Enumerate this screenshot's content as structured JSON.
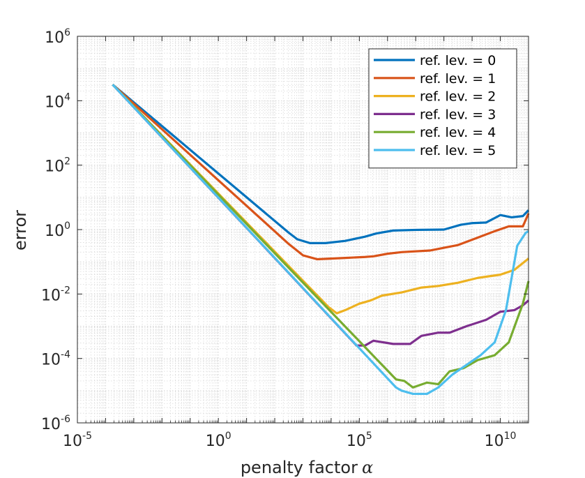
{
  "chart_data": {
    "type": "line",
    "title": "",
    "xlabel": "penalty factor",
    "xlabel_symbol": "α",
    "ylabel": "error",
    "xscale": "log",
    "yscale": "log",
    "xlim": [
      -5,
      11
    ],
    "ylim": [
      -6,
      6
    ],
    "xlim_note": "log10 exponents",
    "x_ticks": [
      {
        "base": "10",
        "exp": "-5",
        "value": -5
      },
      {
        "base": "10",
        "exp": "0",
        "value": 0
      },
      {
        "base": "10",
        "exp": "5",
        "value": 5
      },
      {
        "base": "10",
        "exp": "10",
        "value": 10
      }
    ],
    "y_ticks": [
      {
        "base": "10",
        "exp": "-6",
        "value": -6
      },
      {
        "base": "10",
        "exp": "-4",
        "value": -4
      },
      {
        "base": "10",
        "exp": "-2",
        "value": -2
      },
      {
        "base": "10",
        "exp": "0",
        "value": 0
      },
      {
        "base": "10",
        "exp": "2",
        "value": 2
      },
      {
        "base": "10",
        "exp": "4",
        "value": 4
      },
      {
        "base": "10",
        "exp": "6",
        "value": 6
      }
    ],
    "grid": true,
    "legend_position": "top-right",
    "series": [
      {
        "name": "ref. lev. = 0",
        "color": "#0072BD",
        "points": [
          [
            -3.75,
            4.5
          ],
          [
            2.5,
            -0.1
          ],
          [
            2.8,
            -0.3
          ],
          [
            3.25,
            -0.42
          ],
          [
            3.8,
            -0.42
          ],
          [
            4.5,
            -0.35
          ],
          [
            5.2,
            -0.22
          ],
          [
            5.6,
            -0.12
          ],
          [
            6.2,
            -0.03
          ],
          [
            7.0,
            -0.01
          ],
          [
            8.0,
            0.0
          ],
          [
            8.6,
            0.15
          ],
          [
            9.0,
            0.2
          ],
          [
            9.5,
            0.22
          ],
          [
            10.0,
            0.45
          ],
          [
            10.4,
            0.38
          ],
          [
            10.8,
            0.42
          ],
          [
            11.0,
            0.6
          ]
        ]
      },
      {
        "name": "ref. lev. = 1",
        "color": "#D95319",
        "points": [
          [
            -3.75,
            4.5
          ],
          [
            2.5,
            -0.45
          ],
          [
            3.0,
            -0.8
          ],
          [
            3.5,
            -0.92
          ],
          [
            4.5,
            -0.88
          ],
          [
            5.2,
            -0.85
          ],
          [
            5.5,
            -0.83
          ],
          [
            6.0,
            -0.75
          ],
          [
            6.5,
            -0.7
          ],
          [
            7.5,
            -0.65
          ],
          [
            8.5,
            -0.48
          ],
          [
            9.2,
            -0.25
          ],
          [
            9.8,
            -0.05
          ],
          [
            10.3,
            0.1
          ],
          [
            10.8,
            0.1
          ],
          [
            11.0,
            0.5
          ]
        ]
      },
      {
        "name": "ref. lev. = 2",
        "color": "#EDB120",
        "points": [
          [
            -3.75,
            4.5
          ],
          [
            3.9,
            -2.4
          ],
          [
            4.2,
            -2.6
          ],
          [
            4.5,
            -2.5
          ],
          [
            5.0,
            -2.3
          ],
          [
            5.4,
            -2.2
          ],
          [
            5.8,
            -2.05
          ],
          [
            6.5,
            -1.95
          ],
          [
            7.2,
            -1.8
          ],
          [
            7.8,
            -1.75
          ],
          [
            8.5,
            -1.65
          ],
          [
            9.2,
            -1.5
          ],
          [
            10.0,
            -1.4
          ],
          [
            10.5,
            -1.25
          ],
          [
            11.0,
            -0.9
          ]
        ]
      },
      {
        "name": "ref. lev. = 3",
        "color": "#7E2F8E",
        "points": [
          [
            -3.75,
            4.5
          ],
          [
            4.9,
            -3.6
          ],
          [
            5.2,
            -3.6
          ],
          [
            5.5,
            -3.45
          ],
          [
            6.2,
            -3.55
          ],
          [
            6.8,
            -3.55
          ],
          [
            7.2,
            -3.3
          ],
          [
            7.8,
            -3.2
          ],
          [
            8.2,
            -3.2
          ],
          [
            8.8,
            -3.0
          ],
          [
            9.5,
            -2.8
          ],
          [
            10.0,
            -2.55
          ],
          [
            10.5,
            -2.5
          ],
          [
            10.8,
            -2.35
          ],
          [
            11.0,
            -2.2
          ]
        ]
      },
      {
        "name": "ref. lev. = 4",
        "color": "#77AC30",
        "points": [
          [
            -3.75,
            4.5
          ],
          [
            6.3,
            -4.65
          ],
          [
            6.6,
            -4.7
          ],
          [
            6.9,
            -4.9
          ],
          [
            7.4,
            -4.75
          ],
          [
            7.8,
            -4.8
          ],
          [
            8.2,
            -4.4
          ],
          [
            8.7,
            -4.3
          ],
          [
            9.2,
            -4.05
          ],
          [
            9.8,
            -3.9
          ],
          [
            10.3,
            -3.5
          ],
          [
            10.8,
            -2.3
          ],
          [
            11.0,
            -1.6
          ]
        ]
      },
      {
        "name": "ref. lev. = 5",
        "color": "#4DBEEE",
        "points": [
          [
            -3.75,
            4.5
          ],
          [
            6.3,
            -4.9
          ],
          [
            6.5,
            -5.0
          ],
          [
            6.9,
            -5.1
          ],
          [
            7.4,
            -5.1
          ],
          [
            7.8,
            -4.9
          ],
          [
            8.3,
            -4.5
          ],
          [
            8.8,
            -4.2
          ],
          [
            9.3,
            -3.9
          ],
          [
            9.8,
            -3.5
          ],
          [
            10.2,
            -2.5
          ],
          [
            10.6,
            -0.5
          ],
          [
            10.9,
            -0.1
          ],
          [
            11.0,
            -0.05
          ]
        ]
      }
    ]
  }
}
